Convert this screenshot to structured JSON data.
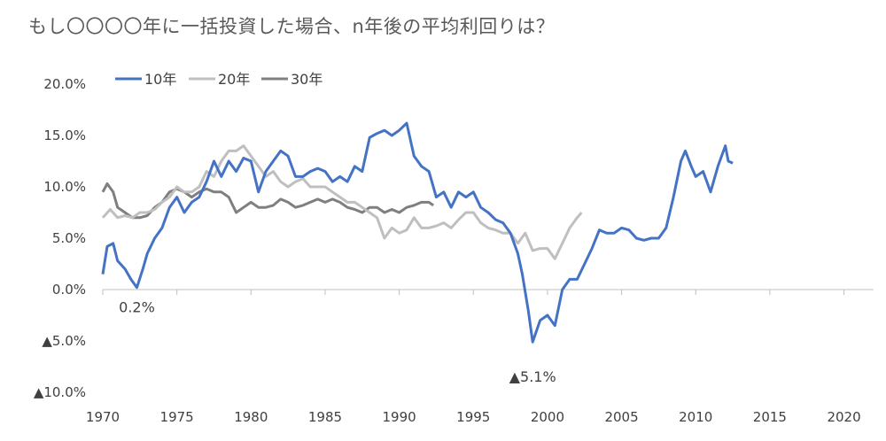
{
  "chart_data": {
    "type": "line",
    "title": "もし〇〇〇〇年に一括投資した場合、n年後の平均利回りは？",
    "xlabel": "",
    "ylabel": "",
    "xlim": [
      1970,
      2022
    ],
    "ylim": [
      -10,
      20
    ],
    "x_ticks": [
      "1970",
      "1975",
      "1980",
      "1985",
      "1990",
      "1995",
      "2000",
      "2005",
      "2010",
      "2015",
      "2020"
    ],
    "y_ticks": [
      {
        "value": 20,
        "label": "20.0%"
      },
      {
        "value": 15,
        "label": "15.0%"
      },
      {
        "value": 10,
        "label": "10.0%"
      },
      {
        "value": 5,
        "label": "5.0%"
      },
      {
        "value": 0,
        "label": "0.0%"
      },
      {
        "value": -5,
        "label": "▲5.0%"
      },
      {
        "value": -10,
        "label": "▲10.0%"
      }
    ],
    "grid": false,
    "legend": "top-left",
    "series": [
      {
        "name": "10年",
        "color": "#4472C4",
        "points": [
          [
            1970.0,
            1.5
          ],
          [
            1970.3,
            4.2
          ],
          [
            1970.7,
            4.5
          ],
          [
            1971.0,
            2.8
          ],
          [
            1971.5,
            2.0
          ],
          [
            1971.9,
            1.0
          ],
          [
            1972.3,
            0.2
          ],
          [
            1972.7,
            2.0
          ],
          [
            1973.0,
            3.5
          ],
          [
            1973.5,
            5.0
          ],
          [
            1974.0,
            6.0
          ],
          [
            1974.5,
            8.0
          ],
          [
            1975.0,
            9.0
          ],
          [
            1975.5,
            7.5
          ],
          [
            1976.0,
            8.5
          ],
          [
            1976.5,
            9.0
          ],
          [
            1977.0,
            10.5
          ],
          [
            1977.5,
            12.5
          ],
          [
            1978.0,
            11.0
          ],
          [
            1978.5,
            12.5
          ],
          [
            1979.0,
            11.5
          ],
          [
            1979.5,
            12.8
          ],
          [
            1980.0,
            12.5
          ],
          [
            1980.5,
            9.5
          ],
          [
            1981.0,
            11.5
          ],
          [
            1981.5,
            12.5
          ],
          [
            1982.0,
            13.5
          ],
          [
            1982.5,
            13.0
          ],
          [
            1983.0,
            11.0
          ],
          [
            1983.5,
            11.0
          ],
          [
            1984.0,
            11.5
          ],
          [
            1984.5,
            11.8
          ],
          [
            1985.0,
            11.5
          ],
          [
            1985.5,
            10.5
          ],
          [
            1986.0,
            11.0
          ],
          [
            1986.5,
            10.5
          ],
          [
            1987.0,
            12.0
          ],
          [
            1987.5,
            11.5
          ],
          [
            1988.0,
            14.8
          ],
          [
            1988.5,
            15.2
          ],
          [
            1989.0,
            15.5
          ],
          [
            1989.5,
            15.0
          ],
          [
            1990.0,
            15.5
          ],
          [
            1990.5,
            16.2
          ],
          [
            1991.0,
            13.0
          ],
          [
            1991.5,
            12.0
          ],
          [
            1992.0,
            11.5
          ],
          [
            1992.5,
            9.0
          ],
          [
            1993.0,
            9.5
          ],
          [
            1993.5,
            8.0
          ],
          [
            1994.0,
            9.5
          ],
          [
            1994.5,
            9.0
          ],
          [
            1995.0,
            9.5
          ],
          [
            1995.5,
            8.0
          ],
          [
            1996.0,
            7.5
          ],
          [
            1996.5,
            6.8
          ],
          [
            1997.0,
            6.5
          ],
          [
            1997.5,
            5.5
          ],
          [
            1998.0,
            3.5
          ],
          [
            1998.3,
            1.5
          ],
          [
            1998.7,
            -2.0
          ],
          [
            1999.0,
            -5.1
          ],
          [
            1999.5,
            -3.0
          ],
          [
            2000.0,
            -2.5
          ],
          [
            2000.5,
            -3.5
          ],
          [
            2001.0,
            0.0
          ],
          [
            2001.5,
            1.0
          ],
          [
            2002.0,
            1.0
          ],
          [
            2002.5,
            2.5
          ],
          [
            2003.0,
            4.0
          ],
          [
            2003.5,
            5.8
          ],
          [
            2004.0,
            5.5
          ],
          [
            2004.5,
            5.5
          ],
          [
            2005.0,
            6.0
          ],
          [
            2005.5,
            5.8
          ],
          [
            2006.0,
            5.0
          ],
          [
            2006.5,
            4.8
          ],
          [
            2007.0,
            5.0
          ],
          [
            2007.5,
            5.0
          ],
          [
            2008.0,
            6.0
          ],
          [
            2008.5,
            9.0
          ],
          [
            2009.0,
            12.5
          ],
          [
            2009.3,
            13.5
          ],
          [
            2009.7,
            12.0
          ],
          [
            2010.0,
            11.0
          ],
          [
            2010.5,
            11.5
          ],
          [
            2011.0,
            9.5
          ],
          [
            2011.5,
            12.0
          ],
          [
            2012.0,
            14.0
          ],
          [
            2012.2,
            12.5
          ],
          [
            2012.5,
            12.3
          ]
        ]
      },
      {
        "name": "20年",
        "color": "#BFBFBF",
        "points": [
          [
            1970.0,
            7.0
          ],
          [
            1970.5,
            7.8
          ],
          [
            1971.0,
            7.0
          ],
          [
            1971.5,
            7.2
          ],
          [
            1972.0,
            7.0
          ],
          [
            1972.5,
            7.5
          ],
          [
            1973.0,
            7.5
          ],
          [
            1973.5,
            7.8
          ],
          [
            1974.0,
            8.5
          ],
          [
            1974.5,
            9.0
          ],
          [
            1975.0,
            10.0
          ],
          [
            1975.5,
            9.5
          ],
          [
            1976.0,
            9.5
          ],
          [
            1976.5,
            10.0
          ],
          [
            1977.0,
            11.5
          ],
          [
            1977.5,
            11.0
          ],
          [
            1978.0,
            12.5
          ],
          [
            1978.5,
            13.5
          ],
          [
            1979.0,
            13.5
          ],
          [
            1979.5,
            14.0
          ],
          [
            1980.0,
            13.0
          ],
          [
            1980.5,
            12.0
          ],
          [
            1981.0,
            11.0
          ],
          [
            1981.5,
            11.5
          ],
          [
            1982.0,
            10.5
          ],
          [
            1982.5,
            10.0
          ],
          [
            1983.0,
            10.5
          ],
          [
            1983.5,
            10.8
          ],
          [
            1984.0,
            10.0
          ],
          [
            1984.5,
            10.0
          ],
          [
            1985.0,
            10.0
          ],
          [
            1985.5,
            9.5
          ],
          [
            1986.0,
            9.0
          ],
          [
            1986.5,
            8.5
          ],
          [
            1987.0,
            8.5
          ],
          [
            1987.5,
            8.0
          ],
          [
            1988.0,
            7.5
          ],
          [
            1988.5,
            7.0
          ],
          [
            1989.0,
            5.0
          ],
          [
            1989.5,
            6.0
          ],
          [
            1990.0,
            5.5
          ],
          [
            1990.5,
            5.8
          ],
          [
            1991.0,
            7.0
          ],
          [
            1991.5,
            6.0
          ],
          [
            1992.0,
            6.0
          ],
          [
            1992.5,
            6.2
          ],
          [
            1993.0,
            6.5
          ],
          [
            1993.5,
            6.0
          ],
          [
            1994.0,
            6.8
          ],
          [
            1994.5,
            7.5
          ],
          [
            1995.0,
            7.5
          ],
          [
            1995.5,
            6.5
          ],
          [
            1996.0,
            6.0
          ],
          [
            1996.5,
            5.8
          ],
          [
            1997.0,
            5.5
          ],
          [
            1997.5,
            5.5
          ],
          [
            1998.0,
            4.5
          ],
          [
            1998.5,
            5.5
          ],
          [
            1999.0,
            3.8
          ],
          [
            1999.5,
            4.0
          ],
          [
            2000.0,
            4.0
          ],
          [
            2000.5,
            3.0
          ],
          [
            2001.0,
            4.5
          ],
          [
            2001.5,
            6.0
          ],
          [
            2002.0,
            7.0
          ],
          [
            2002.3,
            7.5
          ]
        ]
      },
      {
        "name": "30年",
        "color": "#7F7F7F",
        "points": [
          [
            1970.0,
            9.5
          ],
          [
            1970.3,
            10.3
          ],
          [
            1970.7,
            9.5
          ],
          [
            1971.0,
            8.0
          ],
          [
            1971.5,
            7.5
          ],
          [
            1972.0,
            7.0
          ],
          [
            1972.5,
            7.0
          ],
          [
            1973.0,
            7.2
          ],
          [
            1973.5,
            8.0
          ],
          [
            1974.0,
            8.5
          ],
          [
            1974.5,
            9.5
          ],
          [
            1975.0,
            9.8
          ],
          [
            1975.5,
            9.5
          ],
          [
            1976.0,
            9.0
          ],
          [
            1976.5,
            9.5
          ],
          [
            1977.0,
            9.8
          ],
          [
            1977.5,
            9.5
          ],
          [
            1978.0,
            9.5
          ],
          [
            1978.5,
            9.0
          ],
          [
            1979.0,
            7.5
          ],
          [
            1979.5,
            8.0
          ],
          [
            1980.0,
            8.5
          ],
          [
            1980.5,
            8.0
          ],
          [
            1981.0,
            8.0
          ],
          [
            1981.5,
            8.2
          ],
          [
            1982.0,
            8.8
          ],
          [
            1982.5,
            8.5
          ],
          [
            1983.0,
            8.0
          ],
          [
            1983.5,
            8.2
          ],
          [
            1984.0,
            8.5
          ],
          [
            1984.5,
            8.8
          ],
          [
            1985.0,
            8.5
          ],
          [
            1985.5,
            8.8
          ],
          [
            1986.0,
            8.5
          ],
          [
            1986.5,
            8.0
          ],
          [
            1987.0,
            7.8
          ],
          [
            1987.5,
            7.5
          ],
          [
            1988.0,
            8.0
          ],
          [
            1988.5,
            8.0
          ],
          [
            1989.0,
            7.5
          ],
          [
            1989.5,
            7.8
          ],
          [
            1990.0,
            7.5
          ],
          [
            1990.5,
            8.0
          ],
          [
            1991.0,
            8.2
          ],
          [
            1991.5,
            8.5
          ],
          [
            1992.0,
            8.5
          ],
          [
            1992.3,
            8.2
          ]
        ]
      }
    ],
    "annotations": [
      {
        "text": "0.2%",
        "x": 1972.3,
        "y": 0.2
      },
      {
        "text": "▲5.1%",
        "x": 1999.0,
        "y": -5.1
      }
    ]
  }
}
